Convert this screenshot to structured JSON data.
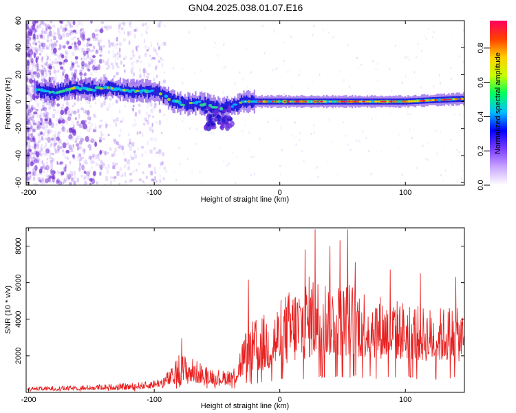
{
  "title": "GN04.2025.038.01.07.E16",
  "chart_data": [
    {
      "type": "heatmap",
      "xlabel": "Height of straight line (km)",
      "ylabel": "Frequency (Hz)",
      "xlim": [
        -202,
        147
      ],
      "ylim": [
        -62,
        60
      ],
      "x_ticks": [
        -200,
        -100,
        0,
        100
      ],
      "y_ticks": [
        -60,
        -40,
        -20,
        0,
        20,
        40,
        60
      ],
      "grid": false,
      "trace": {
        "x": [
          -195,
          -180,
          -165,
          -150,
          -135,
          -120,
          -105,
          -95,
          -85,
          -75,
          -65,
          -55,
          -48,
          -42,
          -36,
          -30,
          -20,
          -10,
          0,
          20,
          40,
          60,
          80,
          100,
          120,
          145
        ],
        "y": [
          9,
          7,
          10,
          9,
          10,
          8,
          8,
          6,
          0,
          -2,
          -1,
          -3,
          -5,
          -4,
          -3,
          0,
          0,
          0,
          0,
          0,
          0,
          0,
          0,
          0,
          1,
          2
        ]
      },
      "colorbar": {
        "label": "Normalized spectral amplitude",
        "range": [
          0,
          0.96
        ],
        "ticks": [
          "0.0",
          "0.2",
          "0.4",
          "0.6",
          "0.8"
        ],
        "colors": [
          "#ffffff",
          "#c9a6ff",
          "#7a3cff",
          "#0000ff",
          "#00c0ff",
          "#00ff60",
          "#c8ff00",
          "#ffd000",
          "#ff4000",
          "#ff0060"
        ]
      }
    },
    {
      "type": "line",
      "xlabel": "Height of straight line (km)",
      "ylabel": "SNR (10 * v/v)",
      "xlim": [
        -202,
        147
      ],
      "ylim": [
        0,
        9000
      ],
      "x_ticks": [
        -200,
        -100,
        0,
        100
      ],
      "y_ticks": [
        2000,
        4000,
        6000,
        8000
      ],
      "grid": false,
      "series": [
        {
          "color": "#e82020",
          "envelope": {
            "x": [
              -200,
              -170,
              -140,
              -120,
              -105,
              -95,
              -85,
              -80,
              -70,
              -60,
              -45,
              -35,
              -30,
              -25,
              -15,
              -5,
              5,
              15,
              25,
              35,
              45,
              55,
              65,
              75,
              85,
              95,
              105,
              115,
              125,
              135,
              147
            ],
            "low": [
              100,
              100,
              150,
              150,
              200,
              300,
              400,
              400,
              500,
              500,
              400,
              500,
              800,
              900,
              1100,
              1300,
              1500,
              1700,
              1900,
              2000,
              2000,
              2000,
              1900,
              1900,
              1800,
              1800,
              1800,
              1700,
              1700,
              1700,
              1700
            ],
            "high": [
              300,
              350,
              450,
              500,
              600,
              800,
              1400,
              2200,
              1900,
              1500,
              1200,
              1500,
              3000,
              3800,
              4200,
              4600,
              5500,
              6000,
              6500,
              6400,
              6000,
              6100,
              5900,
              5600,
              5200,
              5100,
              5000,
              4700,
              4600,
              4800,
              4400
            ]
          },
          "peaks": [
            [
              -78,
              2950
            ],
            [
              -25,
              6150
            ],
            [
              20,
              7800
            ],
            [
              28,
              8900
            ],
            [
              40,
              8000
            ],
            [
              48,
              8300
            ],
            [
              54,
              8900
            ],
            [
              60,
              7100
            ],
            [
              88,
              6700
            ],
            [
              112,
              6500
            ],
            [
              140,
              6300
            ]
          ]
        }
      ]
    }
  ]
}
